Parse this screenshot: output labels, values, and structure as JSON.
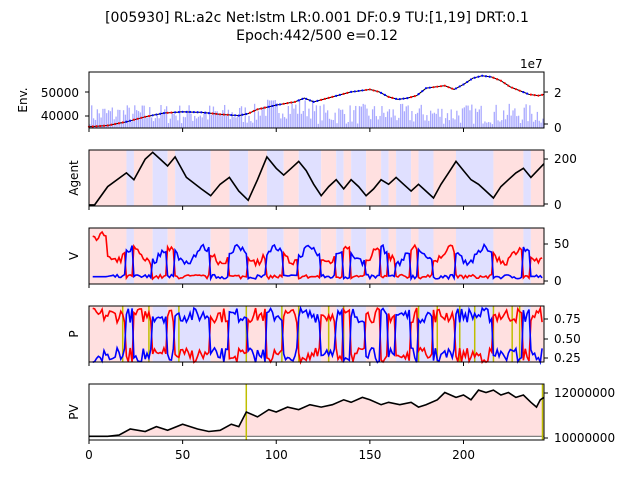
{
  "chart_data": {
    "type": "line",
    "title_line1": "[005930] RL:a2c Net:lstm LR:0.001 DF:0.9 TU:[1,19] DRT:0.1",
    "title_line2": "Epoch:442/500 e=0.12",
    "x_range": [
      0,
      243
    ],
    "x_ticks": [
      "0",
      "50",
      "100",
      "150",
      "200"
    ],
    "colors": {
      "red": "#ff0000",
      "blue": "#0000ff",
      "black": "#000000",
      "volume": "#aaaaff",
      "action_bg_red": "#ffe0e0",
      "action_bg_blue": "#e0e0ff",
      "gold": "#bfbf00",
      "pv_fill": "#ffe0e0"
    },
    "panels": [
      {
        "ylabel": "Env.",
        "left_ticks": [
          "40000",
          "50000"
        ],
        "right_ticks": [
          "0",
          "2"
        ],
        "right_offset_label": "1e7",
        "price_points": [
          [
            0,
            36500
          ],
          [
            10,
            37000
          ],
          [
            20,
            38500
          ],
          [
            30,
            40500
          ],
          [
            40,
            42000
          ],
          [
            50,
            42500
          ],
          [
            60,
            42300
          ],
          [
            70,
            41500
          ],
          [
            80,
            41000
          ],
          [
            85,
            41800
          ],
          [
            90,
            43500
          ],
          [
            100,
            45200
          ],
          [
            110,
            46500
          ],
          [
            115,
            48000
          ],
          [
            120,
            46500
          ],
          [
            130,
            48500
          ],
          [
            140,
            50500
          ],
          [
            150,
            51500
          ],
          [
            155,
            50500
          ],
          [
            160,
            48500
          ],
          [
            165,
            47500
          ],
          [
            170,
            48000
          ],
          [
            175,
            49000
          ],
          [
            180,
            52000
          ],
          [
            190,
            53000
          ],
          [
            195,
            51500
          ],
          [
            200,
            53500
          ],
          [
            205,
            56000
          ],
          [
            210,
            57000
          ],
          [
            215,
            56500
          ],
          [
            220,
            55000
          ],
          [
            225,
            52500
          ],
          [
            230,
            51000
          ],
          [
            235,
            49500
          ],
          [
            240,
            49000
          ],
          [
            243,
            49500
          ]
        ]
      },
      {
        "ylabel": "Agent",
        "right_ticks": [
          "0",
          "200"
        ],
        "holdings_points": [
          [
            0,
            0
          ],
          [
            3,
            0
          ],
          [
            10,
            80
          ],
          [
            20,
            140
          ],
          [
            24,
            110
          ],
          [
            30,
            200
          ],
          [
            34,
            230
          ],
          [
            38,
            200
          ],
          [
            42,
            170
          ],
          [
            46,
            210
          ],
          [
            52,
            120
          ],
          [
            60,
            70
          ],
          [
            65,
            40
          ],
          [
            70,
            90
          ],
          [
            75,
            120
          ],
          [
            80,
            60
          ],
          [
            85,
            20
          ],
          [
            90,
            110
          ],
          [
            95,
            210
          ],
          [
            100,
            160
          ],
          [
            104,
            130
          ],
          [
            108,
            160
          ],
          [
            112,
            190
          ],
          [
            116,
            150
          ],
          [
            120,
            90
          ],
          [
            124,
            40
          ],
          [
            128,
            80
          ],
          [
            132,
            110
          ],
          [
            136,
            70
          ],
          [
            140,
            110
          ],
          [
            144,
            80
          ],
          [
            148,
            40
          ],
          [
            152,
            70
          ],
          [
            156,
            110
          ],
          [
            160,
            90
          ],
          [
            164,
            120
          ],
          [
            168,
            90
          ],
          [
            172,
            60
          ],
          [
            176,
            90
          ],
          [
            180,
            60
          ],
          [
            184,
            30
          ],
          [
            188,
            90
          ],
          [
            192,
            140
          ],
          [
            196,
            190
          ],
          [
            200,
            150
          ],
          [
            204,
            110
          ],
          [
            208,
            90
          ],
          [
            212,
            60
          ],
          [
            216,
            30
          ],
          [
            220,
            80
          ],
          [
            224,
            110
          ],
          [
            228,
            140
          ],
          [
            232,
            160
          ],
          [
            236,
            120
          ],
          [
            243,
            180
          ]
        ]
      },
      {
        "ylabel": "V",
        "right_ticks": [
          "0",
          "50"
        ]
      },
      {
        "ylabel": "P",
        "right_ticks": [
          "0.25",
          "0.50",
          "0.75"
        ]
      },
      {
        "ylabel": "PV",
        "right_ticks": [
          "10000000",
          "12000000"
        ],
        "pv_points": [
          [
            0,
            10000000
          ],
          [
            10,
            10000000
          ],
          [
            16,
            10050000
          ],
          [
            22,
            10300000
          ],
          [
            30,
            10200000
          ],
          [
            36,
            10400000
          ],
          [
            42,
            10250000
          ],
          [
            50,
            10500000
          ],
          [
            58,
            10300000
          ],
          [
            64,
            10200000
          ],
          [
            70,
            10250000
          ],
          [
            76,
            10500000
          ],
          [
            80,
            10400000
          ],
          [
            84,
            11000000
          ],
          [
            90,
            10800000
          ],
          [
            96,
            11100000
          ],
          [
            100,
            11000000
          ],
          [
            106,
            11200000
          ],
          [
            112,
            11100000
          ],
          [
            118,
            11300000
          ],
          [
            124,
            11200000
          ],
          [
            130,
            11300000
          ],
          [
            136,
            11500000
          ],
          [
            140,
            11400000
          ],
          [
            146,
            11600000
          ],
          [
            150,
            11500000
          ],
          [
            156,
            11300000
          ],
          [
            160,
            11400000
          ],
          [
            166,
            11300000
          ],
          [
            172,
            11400000
          ],
          [
            176,
            11200000
          ],
          [
            180,
            11300000
          ],
          [
            186,
            11500000
          ],
          [
            190,
            11800000
          ],
          [
            196,
            11600000
          ],
          [
            200,
            11700000
          ],
          [
            204,
            11500000
          ],
          [
            208,
            11900000
          ],
          [
            212,
            11800000
          ],
          [
            216,
            11900000
          ],
          [
            220,
            11700000
          ],
          [
            224,
            11800000
          ],
          [
            228,
            11600000
          ],
          [
            232,
            11700000
          ],
          [
            236,
            11400000
          ],
          [
            239,
            11200000
          ],
          [
            241,
            11500000
          ],
          [
            243,
            11600000
          ]
        ],
        "learning_points": [
          84,
          243
        ]
      }
    ]
  }
}
